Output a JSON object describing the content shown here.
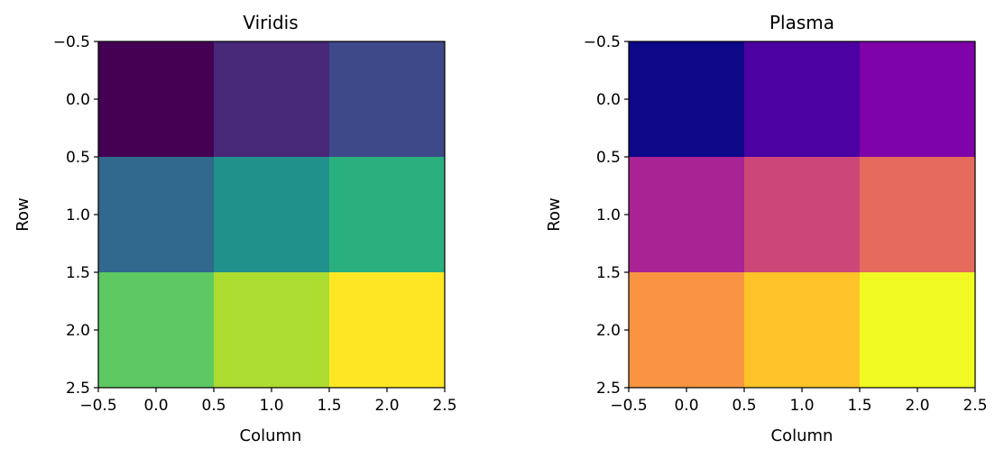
{
  "chart_data": [
    {
      "type": "heatmap",
      "title": "Viridis",
      "xlabel": "Column",
      "ylabel": "Row",
      "xlim": [
        -0.5,
        2.5
      ],
      "ylim": [
        2.5,
        -0.5
      ],
      "xticks": [
        "−0.5",
        "0.0",
        "0.5",
        "1.0",
        "1.5",
        "2.0",
        "2.5"
      ],
      "yticks": [
        "−0.5",
        "0.0",
        "0.5",
        "1.0",
        "1.5",
        "2.0",
        "2.5"
      ],
      "colormap": "viridis",
      "values": [
        [
          1,
          2,
          3
        ],
        [
          4,
          5,
          6
        ],
        [
          7,
          8,
          9
        ]
      ],
      "cell_colors": [
        [
          "#440154",
          "#482878",
          "#3e4989"
        ],
        [
          "#31688e",
          "#21918c",
          "#2ab07f"
        ],
        [
          "#5ec962",
          "#addc30",
          "#fde725"
        ]
      ],
      "grid": false
    },
    {
      "type": "heatmap",
      "title": "Plasma",
      "xlabel": "Column",
      "ylabel": "Row",
      "xlim": [
        -0.5,
        2.5
      ],
      "ylim": [
        2.5,
        -0.5
      ],
      "xticks": [
        "−0.5",
        "0.0",
        "0.5",
        "1.0",
        "1.5",
        "2.0",
        "2.5"
      ],
      "yticks": [
        "−0.5",
        "0.0",
        "0.5",
        "1.0",
        "1.5",
        "2.0",
        "2.5"
      ],
      "colormap": "plasma",
      "values": [
        [
          1,
          2,
          3
        ],
        [
          4,
          5,
          6
        ],
        [
          7,
          8,
          9
        ]
      ],
      "cell_colors": [
        [
          "#0d0887",
          "#4c02a1",
          "#7e03a8"
        ],
        [
          "#a92395",
          "#cc4778",
          "#e56b5d"
        ],
        [
          "#f89441",
          "#fdc328",
          "#f0f921"
        ]
      ],
      "grid": false
    }
  ]
}
